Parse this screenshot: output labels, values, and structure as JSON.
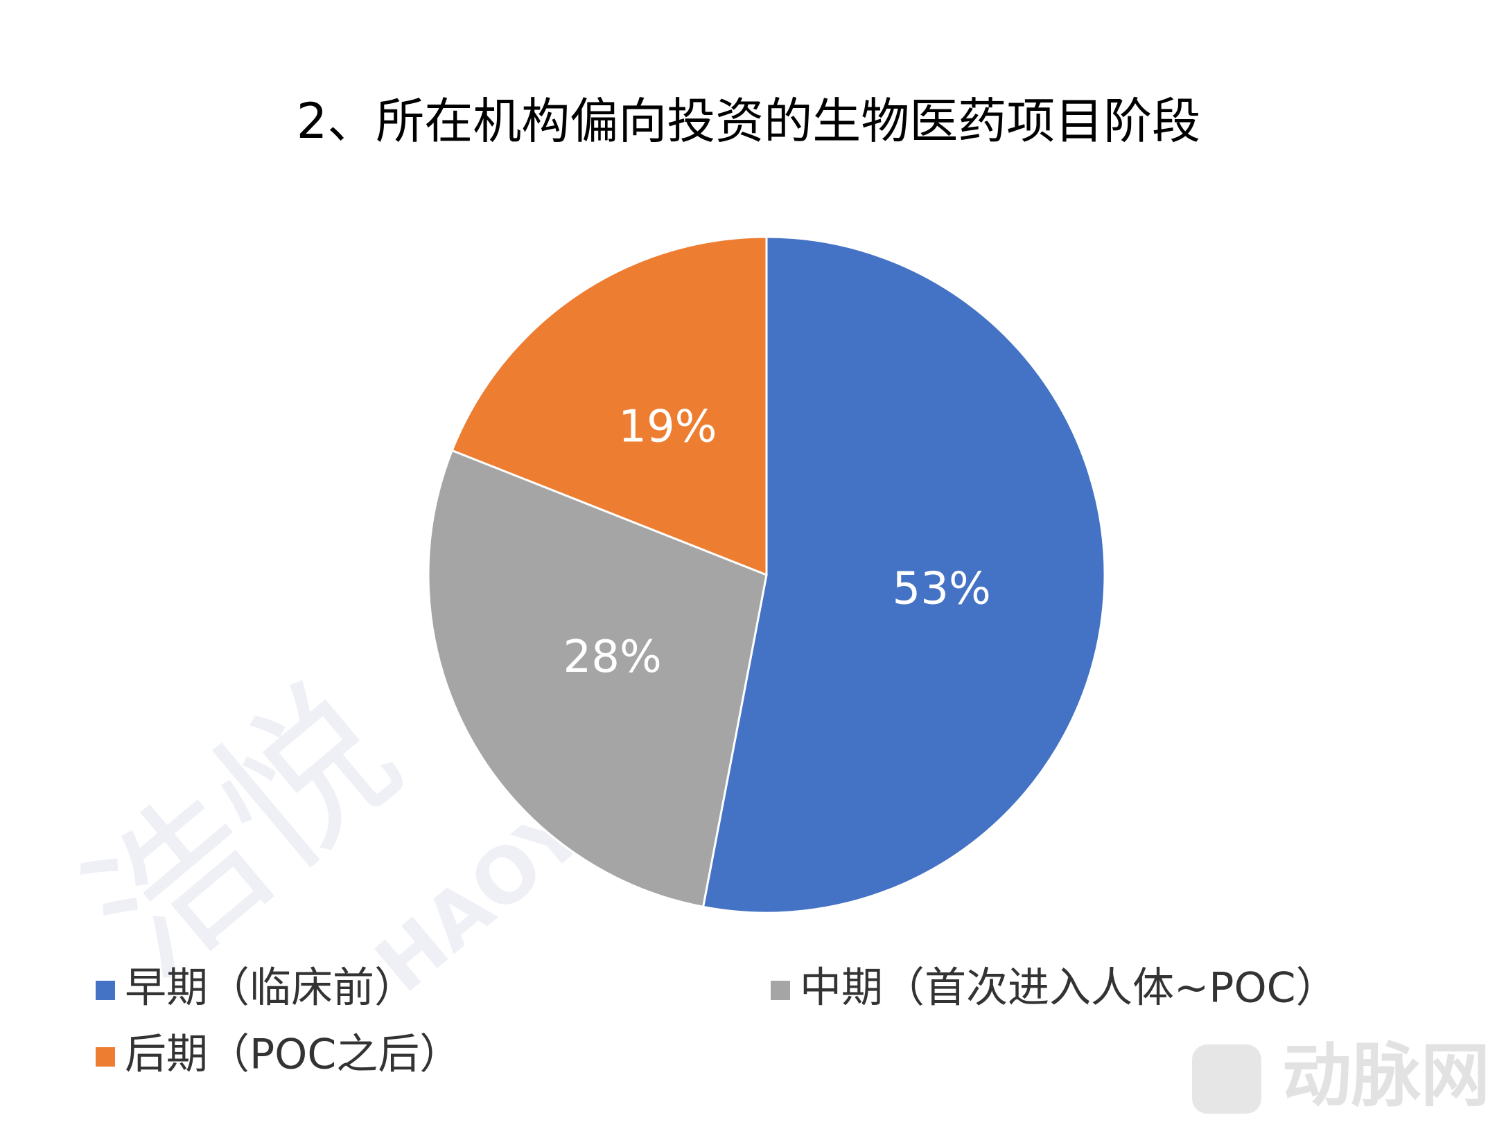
{
  "chart_data": {
    "type": "pie",
    "title": "2、所在机构偏向投资的生物医药项目阶段",
    "categories": [
      "早期（临床前）",
      "中期（首次进入人体~POC）",
      "后期（POC之后）"
    ],
    "values": [
      53,
      28,
      19
    ],
    "value_labels": [
      "53%",
      "28%",
      "19%"
    ],
    "colors": [
      "#4472c4",
      "#a5a5a5",
      "#ed7d31"
    ],
    "legend": "bottom"
  },
  "watermarks": [
    "浩悦",
    "HAOYUE",
    "动脉网"
  ]
}
